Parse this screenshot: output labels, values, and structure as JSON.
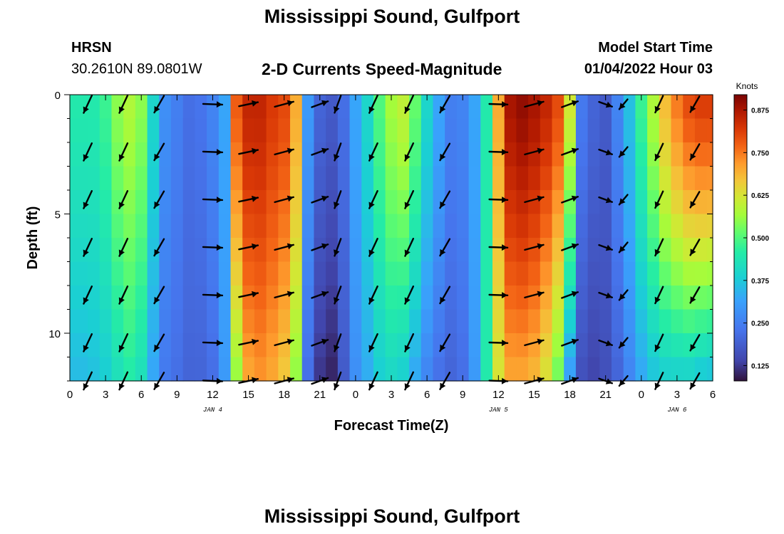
{
  "header": {
    "title": "Mississippi Sound, Gulfport",
    "station_code": "HRSN",
    "station_coords": "30.2610N  89.0801W",
    "chart_title": "2-D Currents Speed-Magnitude",
    "model_start_label": "Model Start Time",
    "model_start_value": "01/04/2022 Hour 03",
    "footer_title": "Mississippi Sound, Gulfport"
  },
  "chart_data": {
    "type": "heatmap",
    "title": "2-D Currents Speed-Magnitude",
    "xlabel": "Forecast Time(Z)",
    "ylabel": "Depth (ft)",
    "x_unit": "hours from 2022-01-04 00Z",
    "xlim": [
      0,
      54
    ],
    "ylim": [
      0,
      12
    ],
    "x_tick_labels": [
      "0",
      "3",
      "6",
      "9",
      "12",
      "15",
      "18",
      "21",
      "0",
      "3",
      "6",
      "9",
      "12",
      "15",
      "18",
      "21",
      "0",
      "3",
      "6"
    ],
    "y_tick_labels": [
      "0",
      "5",
      "10"
    ],
    "date_labels": [
      {
        "text": "JAN 4",
        "hour": 12
      },
      {
        "text": "JAN 5",
        "hour": 36
      },
      {
        "text": "JAN 6",
        "hour": 51
      }
    ],
    "colorbar": {
      "label": "Knots",
      "range": [
        0.08,
        0.92
      ],
      "ticks": [
        "0.875",
        "0.750",
        "0.625",
        "0.500",
        "0.375",
        "0.250",
        "0.125"
      ]
    },
    "speed_profile": {
      "hours": [
        0,
        1,
        2,
        3,
        4,
        5,
        6,
        7,
        8,
        9,
        10,
        11,
        12,
        13,
        14,
        15,
        16,
        17,
        18,
        19,
        20,
        21,
        22,
        23,
        24,
        25,
        26,
        27,
        28,
        29,
        30,
        31,
        32,
        33,
        34,
        35,
        36,
        37,
        38,
        39,
        40,
        41,
        42,
        43,
        44,
        45,
        46,
        47,
        48,
        49,
        50,
        51,
        52,
        53,
        54
      ],
      "surface": [
        0.45,
        0.45,
        0.45,
        0.48,
        0.55,
        0.58,
        0.55,
        0.4,
        0.28,
        0.25,
        0.22,
        0.23,
        0.26,
        0.32,
        0.78,
        0.85,
        0.85,
        0.82,
        0.8,
        0.7,
        0.3,
        0.2,
        0.18,
        0.22,
        0.32,
        0.4,
        0.5,
        0.57,
        0.6,
        0.52,
        0.4,
        0.32,
        0.25,
        0.26,
        0.32,
        0.45,
        0.7,
        0.88,
        0.9,
        0.88,
        0.85,
        0.8,
        0.62,
        0.24,
        0.2,
        0.18,
        0.26,
        0.36,
        0.48,
        0.58,
        0.68,
        0.75,
        0.8,
        0.82,
        0.82
      ],
      "bottom": [
        0.35,
        0.35,
        0.36,
        0.38,
        0.42,
        0.45,
        0.42,
        0.32,
        0.24,
        0.22,
        0.2,
        0.2,
        0.22,
        0.3,
        0.55,
        0.7,
        0.72,
        0.7,
        0.66,
        0.55,
        0.22,
        0.12,
        0.1,
        0.18,
        0.28,
        0.33,
        0.38,
        0.4,
        0.38,
        0.32,
        0.26,
        0.22,
        0.2,
        0.22,
        0.3,
        0.45,
        0.62,
        0.7,
        0.7,
        0.68,
        0.62,
        0.52,
        0.3,
        0.16,
        0.14,
        0.16,
        0.2,
        0.26,
        0.32,
        0.36,
        0.38,
        0.38,
        0.38,
        0.36,
        0.35
      ]
    },
    "vector_depths": [
      0.4,
      2.4,
      4.4,
      6.4,
      8.4,
      10.4,
      12.0
    ],
    "vectors": [
      {
        "hour": 1.5,
        "dir": 205,
        "len": 0.9
      },
      {
        "hour": 4.5,
        "dir": 205,
        "len": 0.9
      },
      {
        "hour": 7.5,
        "dir": 210,
        "len": 0.9
      },
      {
        "hour": 12.0,
        "dir": 92,
        "len": 0.9
      },
      {
        "hour": 15.0,
        "dir": 78,
        "len": 0.9
      },
      {
        "hour": 18.0,
        "dir": 75,
        "len": 0.9
      },
      {
        "hour": 21.0,
        "dir": 70,
        "len": 0.8
      },
      {
        "hour": 22.5,
        "dir": 200,
        "len": 0.85
      },
      {
        "hour": 25.5,
        "dir": 205,
        "len": 0.9
      },
      {
        "hour": 28.5,
        "dir": 205,
        "len": 0.9
      },
      {
        "hour": 31.5,
        "dir": 210,
        "len": 0.9
      },
      {
        "hour": 36.0,
        "dir": 92,
        "len": 0.85
      },
      {
        "hour": 39.0,
        "dir": 75,
        "len": 0.9
      },
      {
        "hour": 42.0,
        "dir": 70,
        "len": 0.8
      },
      {
        "hour": 45.0,
        "dir": 110,
        "len": 0.65
      },
      {
        "hour": 46.5,
        "dir": 220,
        "len": 0.6
      },
      {
        "hour": 49.5,
        "dir": 205,
        "len": 0.85
      },
      {
        "hour": 52.5,
        "dir": 210,
        "len": 0.85
      }
    ],
    "grid": false,
    "legend_position": "right"
  }
}
